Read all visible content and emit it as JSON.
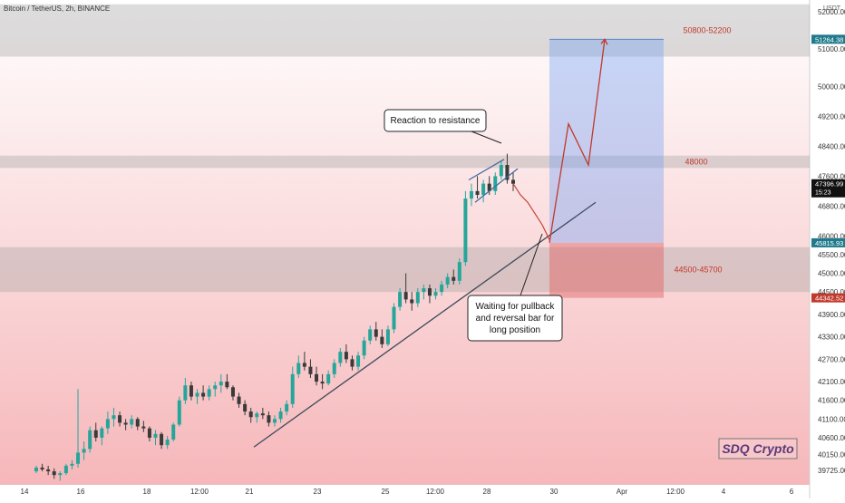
{
  "header": {
    "symbol_line": "Bitcoin / TetherUS, 2h, BINANCE",
    "currency_badge": "USDT",
    "top_price": "52000.00"
  },
  "watermark": {
    "text": "SDQ Crypto"
  },
  "chart_data": {
    "type": "candlestick",
    "title": "Bitcoin / TetherUS, 2h, BINANCE",
    "y_axis": {
      "side": "right",
      "currency": "USDT",
      "range": [
        39500,
        52100
      ],
      "ticks": [
        {
          "value": 52000,
          "label": "52000.00"
        },
        {
          "value": 51000,
          "label": "51000.00"
        },
        {
          "value": 50000,
          "label": "50000.00"
        },
        {
          "value": 49200,
          "label": "49200.00"
        },
        {
          "value": 48400,
          "label": "48400.00"
        },
        {
          "value": 47600,
          "label": "47600.00"
        },
        {
          "value": 46800,
          "label": "46800.00"
        },
        {
          "value": 46000,
          "label": "46000.00"
        },
        {
          "value": 45500,
          "label": "45500.00"
        },
        {
          "value": 45000,
          "label": "45000.00"
        },
        {
          "value": 44500,
          "label": "44500.00"
        },
        {
          "value": 43900,
          "label": "43900.00"
        },
        {
          "value": 43300,
          "label": "43300.00"
        },
        {
          "value": 42700,
          "label": "42700.00"
        },
        {
          "value": 42100,
          "label": "42100.00"
        },
        {
          "value": 41600,
          "label": "41600.00"
        },
        {
          "value": 41100,
          "label": "41100.00"
        },
        {
          "value": 40600,
          "label": "40600.00"
        },
        {
          "value": 40150,
          "label": "40150.00"
        },
        {
          "value": 39725,
          "label": "39725.00"
        }
      ],
      "price_tags": [
        {
          "value": 51264.38,
          "label": "51264.38",
          "color": "#1f7a8c"
        },
        {
          "value": 47396.99,
          "label": "47396.99",
          "sub": "15:23",
          "color": "#111111"
        },
        {
          "value": 45815.93,
          "label": "45815.93",
          "color": "#1f7a8c"
        },
        {
          "value": 44342.52,
          "label": "44342.52",
          "color": "#c0392b"
        }
      ]
    },
    "x_axis": {
      "ticks": [
        "14",
        "16",
        "18",
        "12:00",
        "21",
        "23",
        "25",
        "12:00",
        "28",
        "30",
        "Apr",
        "12:00",
        "4",
        "6"
      ]
    },
    "zones": [
      {
        "label": "50800-52200",
        "low": 50800,
        "high": 52200
      },
      {
        "label": "48000",
        "low": 47820,
        "high": 48150
      },
      {
        "label": "44500-45700",
        "low": 44500,
        "high": 45700
      }
    ],
    "position": {
      "type": "long",
      "entry": 45815.93,
      "target": 51264.38,
      "stop": 44342.52
    },
    "annotations": [
      {
        "text": "Reaction to resistance"
      },
      {
        "lines": [
          "Waiting for pullback",
          "and reversal bar for",
          "long position"
        ]
      }
    ],
    "series": [
      {
        "ohlc": [
          [
            39700,
            39850,
            39650,
            39800
          ],
          [
            39800,
            39900,
            39700,
            39750
          ],
          [
            39750,
            39850,
            39600,
            39700
          ],
          [
            39700,
            39780,
            39500,
            39600
          ],
          [
            39600,
            39700,
            39450,
            39650
          ],
          [
            39650,
            39900,
            39600,
            39850
          ],
          [
            39850,
            40000,
            39750,
            39900
          ],
          [
            39900,
            41900,
            39800,
            40200
          ],
          [
            40200,
            40500,
            40000,
            40300
          ],
          [
            40300,
            40900,
            40200,
            40800
          ],
          [
            40800,
            41000,
            40500,
            40600
          ],
          [
            40600,
            40900,
            40400,
            40850
          ],
          [
            40850,
            41300,
            40700,
            41100
          ],
          [
            41100,
            41400,
            40900,
            41200
          ],
          [
            41200,
            41300,
            40900,
            41000
          ],
          [
            41000,
            41100,
            40800,
            40950
          ],
          [
            40950,
            41200,
            40850,
            41100
          ],
          [
            41100,
            41150,
            40800,
            40900
          ],
          [
            40900,
            41050,
            40750,
            40850
          ],
          [
            40850,
            40900,
            40500,
            40600
          ],
          [
            40600,
            40800,
            40400,
            40700
          ],
          [
            40700,
            40750,
            40300,
            40400
          ],
          [
            40400,
            40650,
            40300,
            40550
          ],
          [
            40550,
            41000,
            40500,
            40950
          ],
          [
            40950,
            41700,
            40900,
            41600
          ],
          [
            41600,
            42200,
            41500,
            42000
          ],
          [
            42000,
            42100,
            41600,
            41700
          ],
          [
            41700,
            41900,
            41500,
            41800
          ],
          [
            41800,
            42000,
            41600,
            41700
          ],
          [
            41700,
            42000,
            41600,
            41900
          ],
          [
            41900,
            42100,
            41700,
            42000
          ],
          [
            42000,
            42300,
            41800,
            42100
          ],
          [
            42100,
            42300,
            41900,
            41950
          ],
          [
            41950,
            42000,
            41600,
            41700
          ],
          [
            41700,
            41800,
            41400,
            41500
          ],
          [
            41500,
            41600,
            41200,
            41300
          ],
          [
            41300,
            41400,
            41000,
            41150
          ],
          [
            41150,
            41300,
            41000,
            41250
          ],
          [
            41250,
            41400,
            41100,
            41200
          ],
          [
            41200,
            41300,
            40900,
            41000
          ],
          [
            41000,
            41200,
            40900,
            41100
          ],
          [
            41100,
            41400,
            41000,
            41300
          ],
          [
            41300,
            41600,
            41200,
            41500
          ],
          [
            41500,
            42500,
            41400,
            42300
          ],
          [
            42300,
            42800,
            42200,
            42600
          ],
          [
            42600,
            42900,
            42400,
            42500
          ],
          [
            42500,
            42700,
            42200,
            42300
          ],
          [
            42300,
            42500,
            42000,
            42100
          ],
          [
            42100,
            42300,
            41900,
            42050
          ],
          [
            42050,
            42400,
            42000,
            42300
          ],
          [
            42300,
            42700,
            42200,
            42600
          ],
          [
            42600,
            43000,
            42500,
            42900
          ],
          [
            42900,
            43100,
            42600,
            42700
          ],
          [
            42700,
            42800,
            42400,
            42500
          ],
          [
            42500,
            42900,
            42400,
            42800
          ],
          [
            42800,
            43300,
            42700,
            43200
          ],
          [
            43200,
            43600,
            43100,
            43500
          ],
          [
            43500,
            43700,
            43200,
            43300
          ],
          [
            43300,
            43500,
            43000,
            43100
          ],
          [
            43100,
            43600,
            43050,
            43500
          ],
          [
            43500,
            44200,
            43400,
            44100
          ],
          [
            44100,
            44600,
            44000,
            44500
          ],
          [
            44500,
            45000,
            44200,
            44300
          ],
          [
            44300,
            44500,
            44000,
            44200
          ],
          [
            44200,
            44600,
            44100,
            44500
          ],
          [
            44500,
            44700,
            44300,
            44600
          ],
          [
            44600,
            44700,
            44200,
            44400
          ],
          [
            44400,
            44600,
            44300,
            44500
          ],
          [
            44500,
            44800,
            44400,
            44700
          ],
          [
            44700,
            45000,
            44600,
            44900
          ],
          [
            44900,
            45100,
            44700,
            44800
          ],
          [
            44800,
            45400,
            44700,
            45300
          ],
          [
            45300,
            47200,
            45200,
            47000
          ],
          [
            47000,
            47400,
            46800,
            47200
          ],
          [
            47200,
            47600,
            47000,
            47100
          ],
          [
            47100,
            47500,
            46900,
            47400
          ],
          [
            47400,
            47600,
            47100,
            47200
          ],
          [
            47200,
            47700,
            47100,
            47600
          ],
          [
            47600,
            48000,
            47500,
            47900
          ],
          [
            47900,
            48200,
            47400,
            47500
          ],
          [
            47500,
            47700,
            47200,
            47397
          ]
        ]
      }
    ],
    "projection_path": [
      45815.93,
      49000,
      47900,
      51264.38
    ],
    "pullback_path": [
      47397,
      47100,
      46900,
      46600,
      46300,
      45900
    ]
  }
}
